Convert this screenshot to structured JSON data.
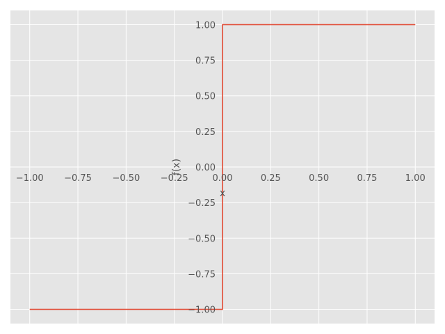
{
  "chart_data": {
    "type": "line",
    "title": "",
    "xlabel": "x",
    "ylabel": "f(x)",
    "xlim": [
      -1.1,
      1.1
    ],
    "ylim": [
      -1.1,
      1.1
    ],
    "grid": true,
    "style": "ggplot",
    "x_ticks": [
      -1.0,
      -0.75,
      -0.5,
      -0.25,
      0.0,
      0.25,
      0.5,
      0.75,
      1.0
    ],
    "x_tick_labels": [
      "−1.00",
      "−0.75",
      "−0.50",
      "−0.25",
      "0.00",
      "0.25",
      "0.50",
      "0.75",
      "1.00"
    ],
    "y_ticks": [
      -1.0,
      -0.75,
      -0.5,
      -0.25,
      0.0,
      0.25,
      0.5,
      0.75,
      1.0
    ],
    "y_tick_labels": [
      "−1.00",
      "−0.75",
      "−0.50",
      "−0.25",
      "0.00",
      "0.25",
      "0.50",
      "0.75",
      "1.00"
    ],
    "series": [
      {
        "x": [
          -1.0,
          0.0,
          0.0,
          1.0
        ],
        "y": [
          -1.0,
          -1.0,
          1.0,
          1.0
        ],
        "color": "#E24A33"
      }
    ],
    "colors": {
      "background": "#E5E5E5",
      "grid": "#FFFFFF",
      "tick_text": "#555555"
    }
  }
}
